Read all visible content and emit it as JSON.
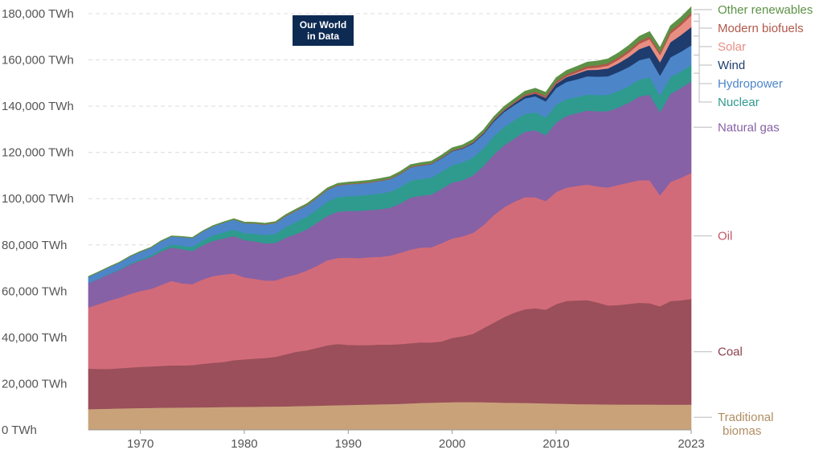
{
  "logo": {
    "line1": "Our World",
    "line2": "in Data"
  },
  "chart_data": {
    "type": "area",
    "stacked": true,
    "title": "",
    "xlabel": "",
    "ylabel": "",
    "x_ticks": [
      "1970",
      "1980",
      "1990",
      "2000",
      "2010",
      "2023"
    ],
    "y_ticks": [
      "0 TWh",
      "20,000 TWh",
      "40,000 TWh",
      "60,000 TWh",
      "80,000 TWh",
      "100,000 TWh",
      "120,000 TWh",
      "140,000 TWh",
      "160,000 TWh",
      "180,000 TWh"
    ],
    "ylim": [
      0,
      180000
    ],
    "xlim": [
      1965,
      2023
    ],
    "grid": true,
    "legend_position": "right",
    "x": [
      1965,
      1966,
      1967,
      1968,
      1969,
      1970,
      1971,
      1972,
      1973,
      1974,
      1975,
      1976,
      1977,
      1978,
      1979,
      1980,
      1981,
      1982,
      1983,
      1984,
      1985,
      1986,
      1987,
      1988,
      1989,
      1990,
      1991,
      1992,
      1993,
      1994,
      1995,
      1996,
      1997,
      1998,
      1999,
      2000,
      2001,
      2002,
      2003,
      2004,
      2005,
      2006,
      2007,
      2008,
      2009,
      2010,
      2011,
      2012,
      2013,
      2014,
      2015,
      2016,
      2017,
      2018,
      2019,
      2020,
      2021,
      2022,
      2023
    ],
    "series": [
      {
        "name": "Traditional biomas",
        "color": "#c9a27a",
        "values": [
          9000,
          9100,
          9200,
          9300,
          9400,
          9500,
          9550,
          9600,
          9650,
          9700,
          9750,
          9800,
          9850,
          9900,
          9950,
          10000,
          10050,
          10100,
          10150,
          10200,
          10300,
          10400,
          10500,
          10600,
          10700,
          10800,
          10900,
          11000,
          11100,
          11200,
          11300,
          11500,
          11700,
          11800,
          11900,
          12000,
          12100,
          12050,
          12000,
          11900,
          11800,
          11750,
          11700,
          11600,
          11500,
          11400,
          11300,
          11200,
          11150,
          11100,
          11050,
          11000,
          11000,
          11000,
          11000,
          10950,
          10950,
          10950,
          10950
        ]
      },
      {
        "name": "Coal",
        "color": "#9a4f5a",
        "values": [
          17500,
          17300,
          17200,
          17400,
          17600,
          17800,
          17900,
          18100,
          18300,
          18200,
          18300,
          18800,
          19200,
          19500,
          20200,
          20500,
          20800,
          21000,
          21500,
          22500,
          23500,
          24000,
          25000,
          26000,
          26500,
          26000,
          25800,
          25700,
          25800,
          25700,
          25800,
          26000,
          26200,
          26000,
          26400,
          27800,
          28400,
          29500,
          32000,
          34500,
          37000,
          39000,
          40500,
          41000,
          40500,
          43000,
          44500,
          44800,
          45000,
          44000,
          42800,
          43000,
          43500,
          44000,
          43800,
          42500,
          44800,
          45100,
          45700
        ]
      },
      {
        "name": "Oil",
        "color": "#d26b79",
        "values": [
          26500,
          28000,
          29500,
          30500,
          31800,
          32800,
          33500,
          35000,
          36500,
          35500,
          35000,
          36500,
          37500,
          37800,
          37500,
          35500,
          34500,
          33500,
          33000,
          33500,
          33500,
          34500,
          35500,
          36800,
          37200,
          37700,
          37600,
          38000,
          37900,
          38500,
          39500,
          40500,
          41000,
          41200,
          42500,
          43000,
          43200,
          43700,
          44500,
          46500,
          47500,
          48000,
          48500,
          48000,
          47000,
          48500,
          49000,
          49500,
          50000,
          50200,
          51000,
          52000,
          52500,
          53000,
          53200,
          48000,
          51500,
          53000,
          54500
        ]
      },
      {
        "name": "Natural gas",
        "color": "#8661a6",
        "values": [
          10500,
          11000,
          11500,
          12000,
          12800,
          13200,
          13800,
          14500,
          14500,
          14800,
          14300,
          14800,
          15200,
          15600,
          16200,
          16100,
          16200,
          16100,
          16200,
          17000,
          17500,
          17800,
          18600,
          19200,
          20000,
          20200,
          20400,
          20400,
          20600,
          20700,
          21300,
          22500,
          22400,
          22800,
          23500,
          24200,
          24300,
          24800,
          25500,
          26200,
          26800,
          27300,
          28300,
          29000,
          28500,
          30000,
          31000,
          31500,
          32000,
          32500,
          33000,
          33500,
          34500,
          36200,
          37000,
          36000,
          38000,
          38800,
          39500
        ]
      },
      {
        "name": "Nuclear",
        "color": "#2e9b8e",
        "values": [
          100,
          150,
          200,
          300,
          400,
          500,
          700,
          1000,
          1200,
          1500,
          1800,
          2100,
          2400,
          2700,
          2800,
          3000,
          3300,
          3600,
          4000,
          4600,
          5200,
          5500,
          5800,
          6200,
          6300,
          6400,
          6600,
          6600,
          6800,
          6900,
          7100,
          7300,
          7200,
          7300,
          7400,
          7500,
          7700,
          7800,
          7700,
          7900,
          7900,
          7900,
          7700,
          7700,
          7600,
          7700,
          7300,
          6900,
          6900,
          7000,
          7100,
          7100,
          7200,
          7300,
          7500,
          7200,
          7400,
          7100,
          7200
        ]
      },
      {
        "name": "Hydropower",
        "color": "#4c86c9",
        "values": [
          2600,
          2700,
          2800,
          2900,
          3000,
          3200,
          3300,
          3400,
          3500,
          3700,
          3800,
          3800,
          3900,
          4100,
          4300,
          4300,
          4400,
          4500,
          4600,
          4700,
          4800,
          4800,
          4900,
          5000,
          5000,
          5100,
          5200,
          5200,
          5400,
          5400,
          5600,
          5700,
          5800,
          5800,
          5800,
          6000,
          5900,
          6000,
          6100,
          6300,
          6500,
          6600,
          6700,
          7000,
          7000,
          7300,
          7400,
          7700,
          7900,
          8000,
          8000,
          8200,
          8300,
          8400,
          8500,
          8600,
          8500,
          8600,
          8500
        ]
      },
      {
        "name": "Wind",
        "color": "#1f3c6e",
        "values": [
          0,
          0,
          0,
          0,
          0,
          0,
          0,
          0,
          0,
          0,
          0,
          0,
          0,
          0,
          0,
          0,
          0,
          0,
          0,
          0,
          0,
          10,
          10,
          20,
          20,
          20,
          30,
          30,
          40,
          50,
          60,
          70,
          90,
          120,
          150,
          200,
          260,
          330,
          420,
          530,
          650,
          820,
          1000,
          1200,
          1500,
          1800,
          2100,
          2500,
          2700,
          3000,
          3400,
          3800,
          4300,
          4800,
          5300,
          5800,
          6500,
          7200,
          7900
        ]
      },
      {
        "name": "Solar",
        "color": "#e88e82",
        "values": [
          0,
          0,
          0,
          0,
          0,
          0,
          0,
          0,
          0,
          0,
          0,
          0,
          0,
          0,
          0,
          0,
          0,
          0,
          0,
          0,
          0,
          0,
          0,
          0,
          0,
          0,
          0,
          0,
          0,
          0,
          0,
          0,
          0,
          0,
          0,
          0,
          0,
          0,
          0,
          0,
          10,
          20,
          40,
          70,
          100,
          170,
          300,
          500,
          700,
          900,
          1200,
          1500,
          1900,
          2300,
          2700,
          3100,
          3700,
          4200,
          5000
        ]
      },
      {
        "name": "Modern biofuels",
        "color": "#b0584a",
        "values": [
          0,
          0,
          0,
          0,
          0,
          0,
          0,
          0,
          0,
          0,
          0,
          0,
          0,
          0,
          0,
          100,
          120,
          140,
          160,
          180,
          200,
          220,
          220,
          220,
          230,
          230,
          240,
          240,
          250,
          260,
          270,
          280,
          280,
          290,
          290,
          300,
          320,
          350,
          380,
          420,
          480,
          560,
          660,
          760,
          830,
          900,
          930,
          950,
          1000,
          1050,
          1080,
          1100,
          1130,
          1170,
          1200,
          1150,
          1200,
          1250,
          1300
        ]
      },
      {
        "name": "Other renewables",
        "color": "#5c9146",
        "values": [
          200,
          210,
          220,
          230,
          240,
          250,
          260,
          270,
          280,
          300,
          320,
          340,
          360,
          380,
          400,
          430,
          460,
          490,
          520,
          550,
          580,
          610,
          640,
          670,
          700,
          730,
          760,
          790,
          820,
          850,
          880,
          910,
          940,
          970,
          1000,
          1050,
          1080,
          1120,
          1160,
          1200,
          1260,
          1320,
          1380,
          1440,
          1500,
          1560,
          1620,
          1680,
          1740,
          1800,
          1860,
          1920,
          1980,
          2040,
          2100,
          2100,
          2200,
          2300,
          2400
        ]
      }
    ],
    "legend": [
      {
        "label": "Other renewables",
        "color": "#5c9146"
      },
      {
        "label": "Modern biofuels",
        "color": "#b0584a"
      },
      {
        "label": "Solar",
        "color": "#e88e82"
      },
      {
        "label": "Wind",
        "color": "#1f3c6e"
      },
      {
        "label": "Hydropower",
        "color": "#4c86c9"
      },
      {
        "label": "Nuclear",
        "color": "#2e9b8e"
      },
      {
        "label": "Natural gas",
        "color": "#8661a6"
      },
      {
        "label": "Oil",
        "color": "#c25565"
      },
      {
        "label": "Coal",
        "color": "#8a3f4c"
      },
      {
        "label": "Traditional\nbiomas",
        "color": "#b08e62"
      }
    ]
  }
}
